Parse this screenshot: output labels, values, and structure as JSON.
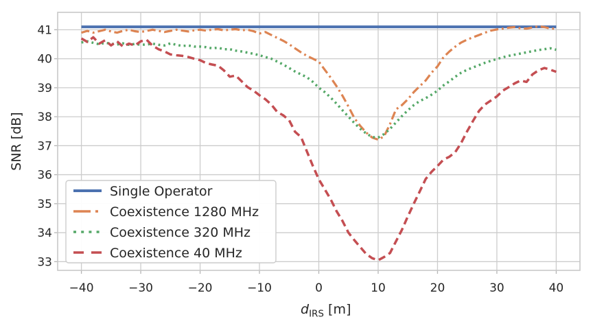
{
  "chart_data": {
    "type": "line",
    "title": "",
    "xlabel": "d_IRS [m]",
    "xlabel_parts": {
      "var": "d",
      "sub": "IRS",
      "unit": " [m]"
    },
    "ylabel": "SNR [dB]",
    "xlim": [
      -44,
      44
    ],
    "ylim": [
      32.7,
      41.6
    ],
    "xticks": [
      -40,
      -30,
      -20,
      -10,
      0,
      10,
      20,
      30,
      40
    ],
    "yticks": [
      33,
      34,
      35,
      36,
      37,
      38,
      39,
      40,
      41
    ],
    "grid": true,
    "legend_position": "lower left",
    "x": [
      -40,
      -39,
      -38,
      -37,
      -36,
      -35,
      -34,
      -33,
      -32,
      -31,
      -30,
      -29,
      -28,
      -27,
      -26,
      -25,
      -24,
      -23,
      -22,
      -21,
      -20,
      -19,
      -18,
      -17,
      -16,
      -15,
      -14,
      -13,
      -12,
      -11,
      -10,
      -9,
      -8,
      -7,
      -6,
      -5,
      -4,
      -3,
      -2,
      -1,
      0,
      1,
      2,
      3,
      4,
      5,
      6,
      7,
      8,
      9,
      10,
      11,
      12,
      13,
      14,
      15,
      16,
      17,
      18,
      19,
      20,
      21,
      22,
      23,
      24,
      25,
      26,
      27,
      28,
      29,
      30,
      31,
      32,
      33,
      34,
      35,
      36,
      37,
      38,
      39,
      40
    ],
    "series": [
      {
        "name": "Single Operator",
        "color": "#4C72B0",
        "style": "solid",
        "width": 4,
        "values": [
          41.1,
          41.1,
          41.1,
          41.1,
          41.1,
          41.1,
          41.1,
          41.1,
          41.1,
          41.1,
          41.1,
          41.1,
          41.1,
          41.1,
          41.1,
          41.1,
          41.1,
          41.1,
          41.1,
          41.1,
          41.1,
          41.1,
          41.1,
          41.1,
          41.1,
          41.1,
          41.1,
          41.1,
          41.1,
          41.1,
          41.1,
          41.1,
          41.1,
          41.1,
          41.1,
          41.1,
          41.1,
          41.1,
          41.1,
          41.1,
          41.1,
          41.1,
          41.1,
          41.1,
          41.1,
          41.1,
          41.1,
          41.1,
          41.1,
          41.1,
          41.1,
          41.1,
          41.1,
          41.1,
          41.1,
          41.1,
          41.1,
          41.1,
          41.1,
          41.1,
          41.1,
          41.1,
          41.1,
          41.1,
          41.1,
          41.1,
          41.1,
          41.1,
          41.1,
          41.1,
          41.1,
          41.1,
          41.1,
          41.1,
          41.1,
          41.1,
          41.1,
          41.1,
          41.1,
          41.1,
          41.1
        ]
      },
      {
        "name": "Coexistence 1280 MHz",
        "color": "#DD8452",
        "style": "dashdot",
        "width": 3.2,
        "values": [
          40.9,
          40.96,
          40.9,
          40.95,
          41.0,
          40.94,
          40.9,
          40.96,
          41.0,
          40.95,
          40.92,
          40.96,
          41.0,
          40.96,
          40.92,
          40.96,
          41.0,
          40.97,
          40.94,
          40.98,
          41.0,
          40.97,
          41.0,
          41.02,
          40.98,
          41.0,
          41.02,
          40.98,
          41.0,
          40.95,
          40.87,
          40.92,
          40.82,
          40.72,
          40.62,
          40.5,
          40.36,
          40.22,
          40.1,
          40.0,
          39.9,
          39.62,
          39.35,
          39.05,
          38.72,
          38.35,
          37.95,
          37.68,
          37.45,
          37.28,
          37.21,
          37.32,
          37.75,
          38.25,
          38.4,
          38.6,
          38.85,
          39.05,
          39.25,
          39.52,
          39.74,
          40.05,
          40.25,
          40.42,
          40.56,
          40.66,
          40.74,
          40.82,
          40.9,
          40.97,
          41.01,
          41.04,
          41.07,
          41.09,
          41.05,
          41.04,
          41.08,
          41.12,
          41.09,
          41.04,
          41.04
        ]
      },
      {
        "name": "Coexistence 320 MHz",
        "color": "#55A868",
        "style": "dotted",
        "width": 3.5,
        "values": [
          40.56,
          40.6,
          40.55,
          40.5,
          40.55,
          40.52,
          40.49,
          40.53,
          40.48,
          40.51,
          40.48,
          40.49,
          40.52,
          40.48,
          40.46,
          40.53,
          40.48,
          40.44,
          40.46,
          40.42,
          40.42,
          40.4,
          40.36,
          40.38,
          40.33,
          40.33,
          40.28,
          40.25,
          40.21,
          40.17,
          40.12,
          40.06,
          40.0,
          39.9,
          39.8,
          39.68,
          39.56,
          39.46,
          39.36,
          39.2,
          39.0,
          38.85,
          38.66,
          38.45,
          38.22,
          38.0,
          37.78,
          37.58,
          37.42,
          37.3,
          37.28,
          37.4,
          37.58,
          37.8,
          38.02,
          38.22,
          38.4,
          38.54,
          38.64,
          38.76,
          38.9,
          39.08,
          39.22,
          39.38,
          39.52,
          39.62,
          39.7,
          39.78,
          39.86,
          39.93,
          39.99,
          40.05,
          40.1,
          40.14,
          40.18,
          40.22,
          40.26,
          40.3,
          40.33,
          40.36,
          40.31
        ]
      },
      {
        "name": "Coexistence 40 MHz",
        "color": "#C44E52",
        "style": "dashed",
        "width": 3.5,
        "values": [
          40.7,
          40.58,
          40.74,
          40.52,
          40.64,
          40.46,
          40.6,
          40.42,
          40.52,
          40.46,
          40.6,
          40.65,
          40.45,
          40.33,
          40.25,
          40.15,
          40.12,
          40.1,
          40.06,
          40.0,
          39.95,
          39.85,
          39.8,
          39.76,
          39.6,
          39.38,
          39.42,
          39.22,
          39.02,
          38.9,
          38.74,
          38.6,
          38.42,
          38.16,
          38.05,
          37.88,
          37.48,
          37.3,
          36.8,
          36.3,
          35.84,
          35.5,
          35.15,
          34.74,
          34.4,
          34.0,
          33.74,
          33.5,
          33.26,
          33.12,
          33.05,
          33.16,
          33.3,
          33.7,
          34.1,
          34.56,
          35.0,
          35.42,
          35.85,
          36.1,
          36.3,
          36.52,
          36.62,
          36.78,
          37.1,
          37.5,
          37.86,
          38.2,
          38.42,
          38.56,
          38.7,
          38.9,
          39.02,
          39.15,
          39.25,
          39.2,
          39.46,
          39.6,
          39.68,
          39.62,
          39.55
        ]
      }
    ]
  }
}
